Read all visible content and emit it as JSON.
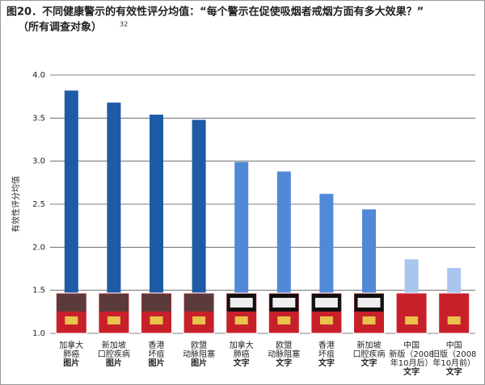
{
  "chart_data": {
    "type": "bar",
    "title": "图20．不同健康警示的有效性评分均值：“每个警示在促使吸烟者戒烟方面有多大效果？”",
    "title_line2": "（所有调查对象）",
    "title_note": "32",
    "y_label": "有效性评分均值",
    "categories": [
      [
        "加拿大",
        "肺癌",
        "图片"
      ],
      [
        "新加坡",
        "口腔疾病",
        "图片"
      ],
      [
        "香港",
        "坏疽",
        "图片"
      ],
      [
        "欧盟",
        "动脉阻塞",
        "图片"
      ],
      [
        "加拿大",
        "肺癌",
        "文字"
      ],
      [
        "欧盟",
        "动脉阻塞",
        "文字"
      ],
      [
        "香港",
        "坏疽",
        "文字"
      ],
      [
        "新加坡",
        "口腔疾病",
        "文字"
      ],
      [
        "中国",
        "新版（2008",
        "年10月后）",
        "文字"
      ],
      [
        "中国",
        "旧版（2008",
        "年10月前）",
        "文字"
      ]
    ],
    "values": [
      3.82,
      3.68,
      3.54,
      3.48,
      2.99,
      2.88,
      2.62,
      2.44,
      1.86,
      1.76
    ],
    "colors": [
      "#1d5ba6",
      "#1d5ba6",
      "#1d5ba6",
      "#1d5ba6",
      "#5089d8",
      "#5089d8",
      "#5089d8",
      "#5089d8",
      "#a9c6ef",
      "#a9c6ef"
    ],
    "ylim": [
      1,
      4
    ],
    "yticks": [
      {
        "value": 1,
        "label": "1.0"
      },
      1.5,
      {
        "value": 2,
        "label": "2.0"
      },
      2.5,
      {
        "value": 3,
        "label": "3.0"
      },
      3.5,
      {
        "value": 4,
        "label": "4.0"
      }
    ],
    "grid": true
  }
}
